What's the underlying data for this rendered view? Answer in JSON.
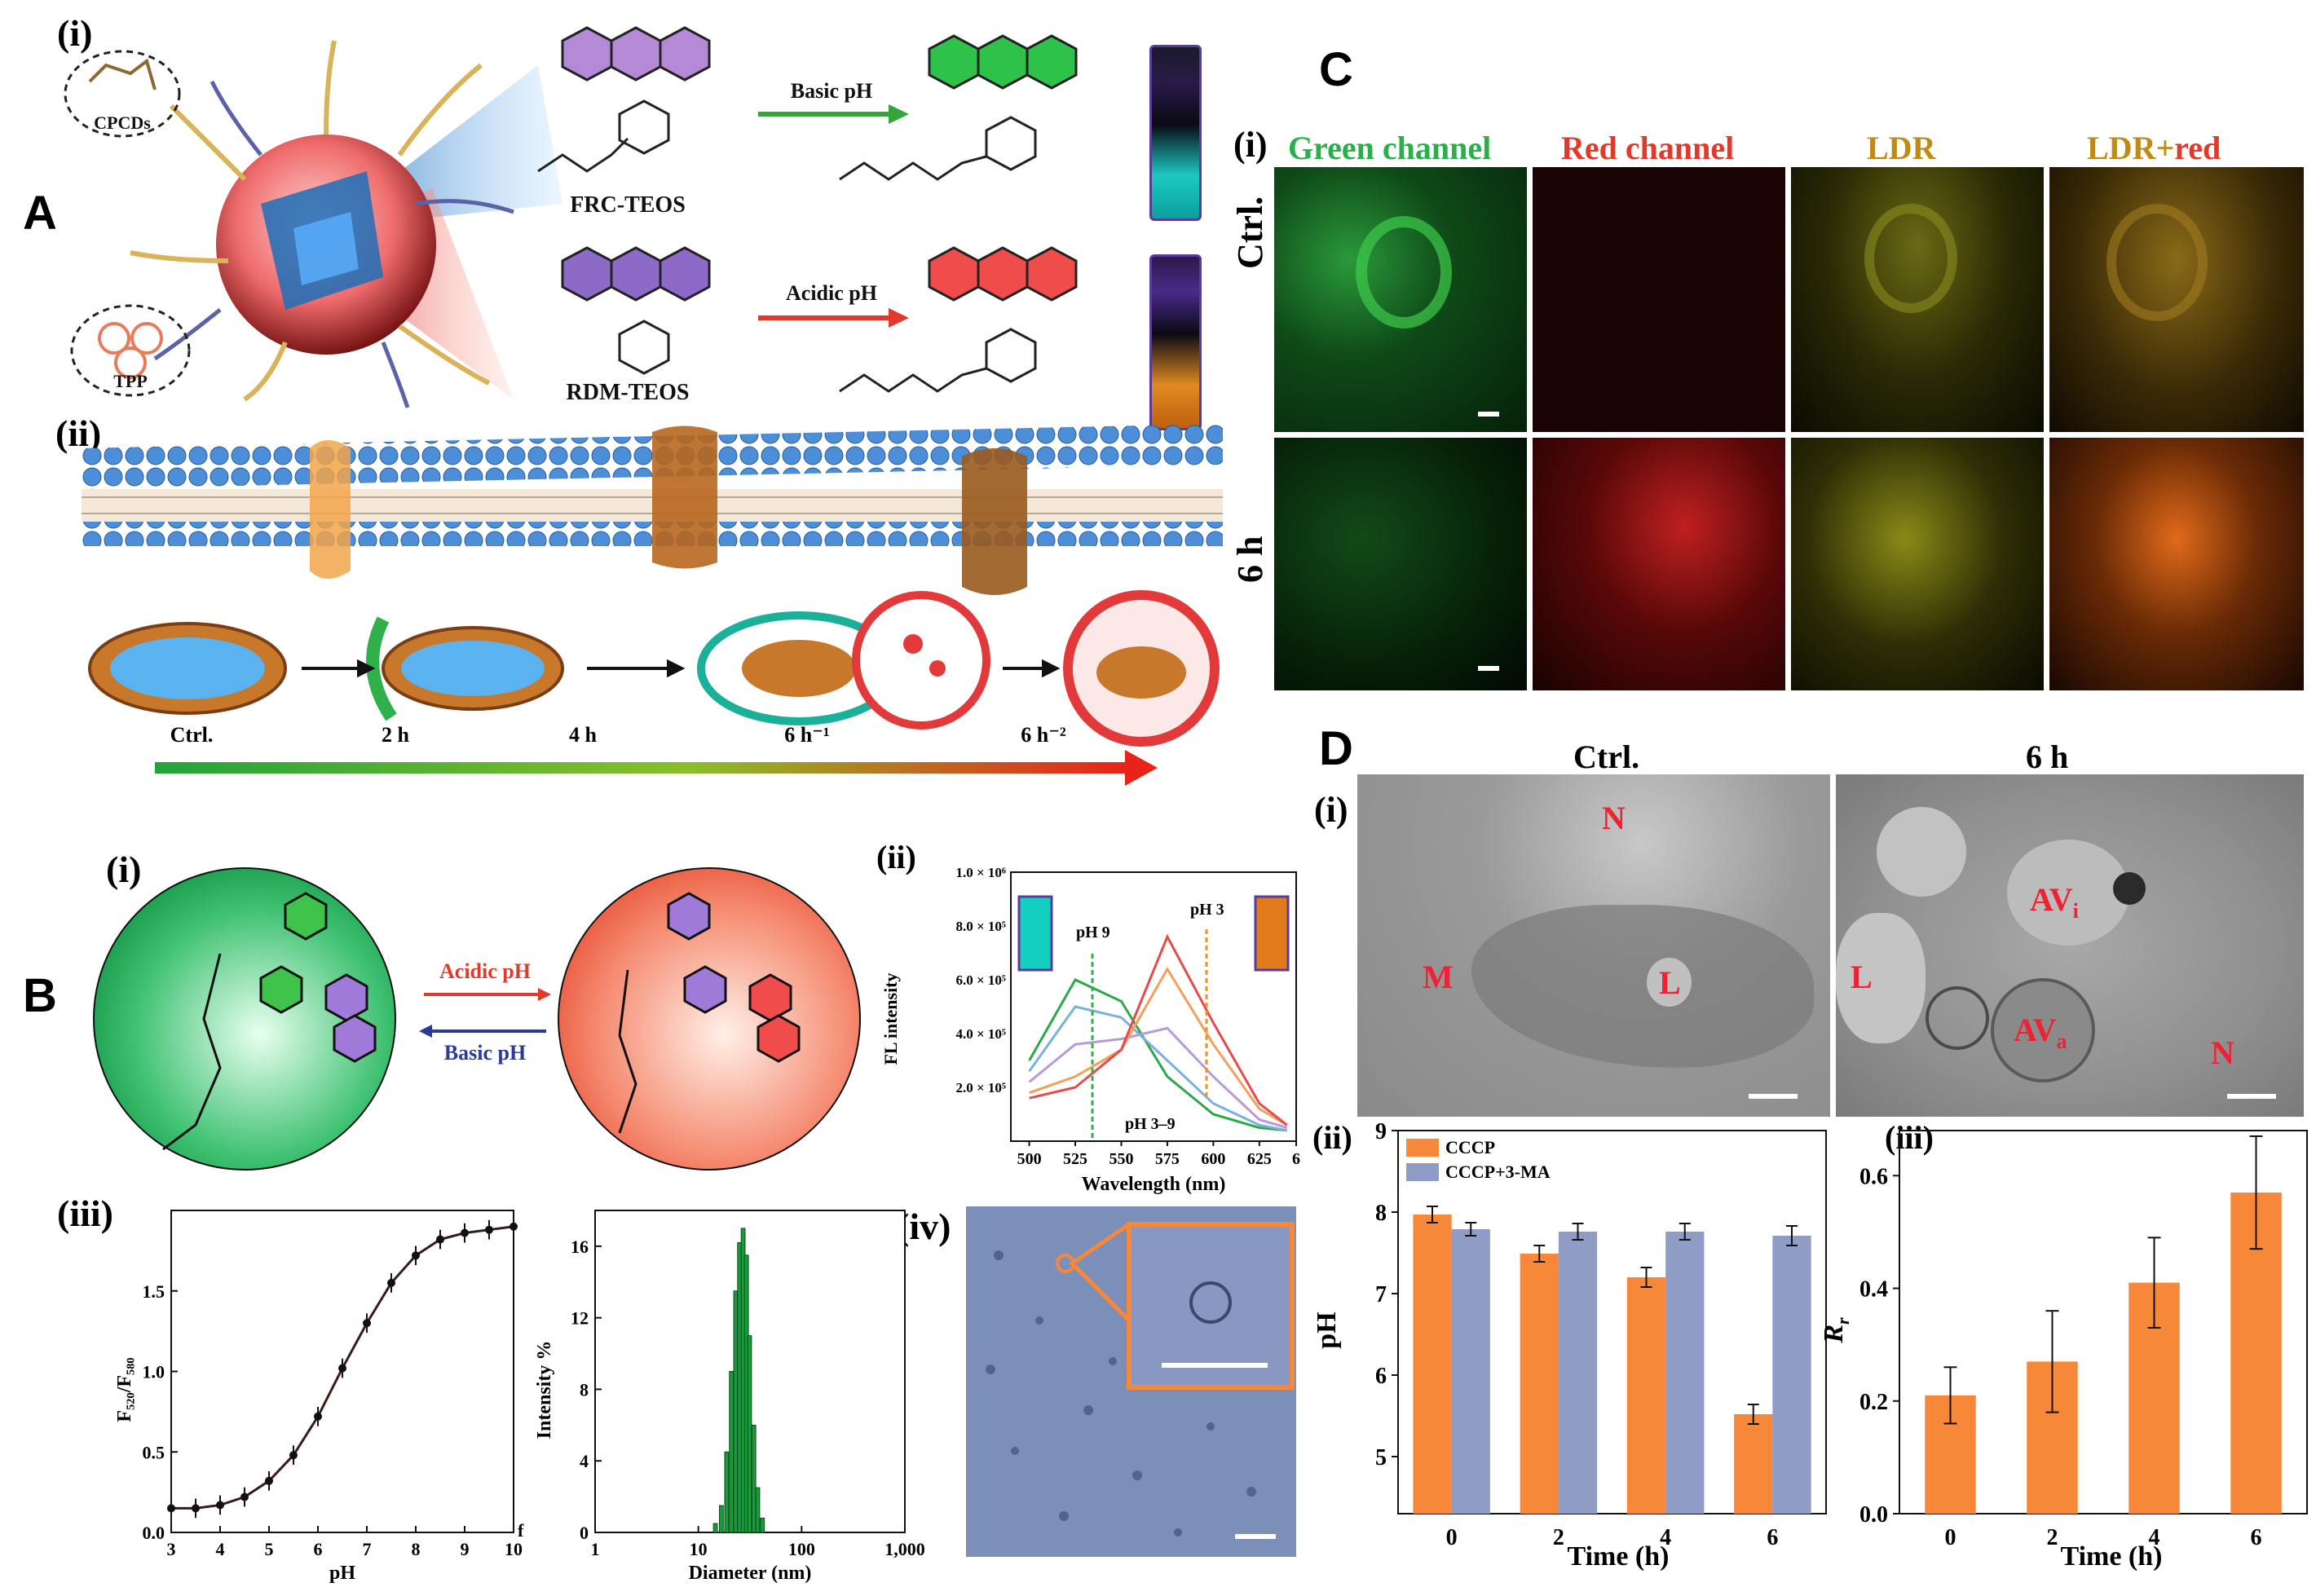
{
  "labels": {
    "A": "A",
    "B": "B",
    "C": "C",
    "D": "D",
    "A_i": "(i)",
    "A_ii": "(ii)",
    "B_i": "(i)",
    "B_ii": "(ii)",
    "B_iii": "(iii)",
    "B_iv": "(iv)",
    "C_i": "(i)",
    "D_i": "(i)",
    "D_ii": "(ii)",
    "D_iii": "(iii)"
  },
  "schemeA": {
    "cpcds": "CPCDs",
    "tpp": "TPP",
    "frc": "FRC-TEOS",
    "rdm": "RDM-TEOS",
    "basic": "Basic pH",
    "acidic": "Acidic pH",
    "steps": [
      "Ctrl.",
      "2 h",
      "4 h",
      "6 h⁻¹",
      "6 h⁻²"
    ]
  },
  "schemeB": {
    "acidic": "Acidic pH",
    "basic": "Basic pH"
  },
  "spectrum": {
    "ylabel": "FL intensity",
    "xlabel": "Wavelength (nm)",
    "ticks_x": [
      "500",
      "525",
      "550",
      "575",
      "600",
      "625",
      "6"
    ],
    "ticks_y": [
      "2.0 × 10⁵",
      "4.0 × 10⁵",
      "6.0 × 10⁵",
      "8.0 × 10⁵",
      "1.0 × 10⁶"
    ],
    "ph9": "pH 9",
    "ph3": "pH 3",
    "range": "pH 3–9"
  },
  "titration": {
    "ylabel": "F₅₂₀/F₅₈₀",
    "xlabel": "pH",
    "ticks_x": [
      "3",
      "4",
      "5",
      "6",
      "7",
      "8",
      "9",
      "10"
    ],
    "ticks_y": [
      "0.0",
      "0.5",
      "1.0",
      "1.5"
    ],
    "f": "f"
  },
  "dls": {
    "ylabel": "Intensity %",
    "xlabel": "Diameter (nm)",
    "ticks_x": [
      "1",
      "10",
      "100",
      "1,000"
    ],
    "ticks_y": [
      "0",
      "4",
      "8",
      "12",
      "16"
    ]
  },
  "confocal": {
    "cols": [
      "Green channel",
      "Red channel",
      "LDR",
      "LDR+",
      "red"
    ],
    "rows": [
      "Ctrl.",
      "6 h"
    ]
  },
  "tem": {
    "cols": [
      "Ctrl.",
      "6 h"
    ],
    "marks_ctrl": [
      "N",
      "M",
      "L"
    ],
    "marks_6h": [
      "AV",
      "i",
      "L",
      "AV",
      "a",
      "N"
    ]
  },
  "colors": {
    "orange": "#f7883a",
    "blue": "#8e9cc6",
    "green": "#1a9a3c",
    "red": "#e02a2a"
  },
  "chart_data": [
    {
      "type": "bar",
      "panel": "D(ii)",
      "categories": [
        "0",
        "2",
        "4",
        "6"
      ],
      "series": [
        {
          "name": "CCCP",
          "values": [
            7.97,
            7.49,
            7.2,
            5.52
          ],
          "errors": [
            0.1,
            0.1,
            0.12,
            0.12
          ]
        },
        {
          "name": "CCCP+3-MA",
          "values": [
            7.79,
            7.76,
            7.76,
            7.71
          ],
          "errors": [
            0.08,
            0.1,
            0.1,
            0.12
          ]
        }
      ],
      "xlabel": "Time (h)",
      "ylabel": "pH",
      "ylim": [
        4.3,
        9
      ],
      "yticks": [
        5,
        6,
        7,
        8,
        9
      ],
      "legend": "top-left"
    },
    {
      "type": "bar",
      "panel": "D(iii)",
      "categories": [
        "0",
        "2",
        "4",
        "6"
      ],
      "series": [
        {
          "values": [
            0.21,
            0.27,
            0.41,
            0.57
          ],
          "errors": [
            0.05,
            0.09,
            0.08,
            0.1
          ]
        }
      ],
      "xlabel": "Time (h)",
      "ylabel": "R",
      "ylabel_sub": "r",
      "ylim": [
        0,
        0.68
      ],
      "yticks": [
        0.0,
        0.2,
        0.4,
        0.6
      ]
    },
    {
      "type": "line",
      "panel": "B(ii)",
      "x": [
        500,
        525,
        550,
        575,
        600,
        625,
        640
      ],
      "series": [
        {
          "values": [
            3.0,
            6.0,
            5.2,
            2.4,
            1.0,
            0.5,
            0.4
          ]
        },
        {
          "values": [
            2.6,
            5.0,
            4.6,
            3.0,
            1.4,
            0.6,
            0.4
          ]
        },
        {
          "values": [
            2.2,
            3.6,
            3.8,
            4.2,
            2.4,
            0.8,
            0.5
          ]
        },
        {
          "values": [
            1.8,
            2.4,
            3.4,
            6.4,
            3.6,
            1.2,
            0.6
          ]
        },
        {
          "values": [
            1.6,
            2.0,
            3.4,
            7.6,
            4.4,
            1.4,
            0.6
          ]
        }
      ],
      "xlabel": "Wavelength (nm)",
      "ylabel": "FL intensity",
      "xlim": [
        490,
        645
      ],
      "ylim": [
        0,
        10
      ]
    },
    {
      "type": "scatter",
      "panel": "B(iii) left",
      "x": [
        3.0,
        3.5,
        4.0,
        4.5,
        5.0,
        5.5,
        6.0,
        6.5,
        7.0,
        7.5,
        8.0,
        8.5,
        9.0,
        9.5,
        10.0
      ],
      "values": [
        0.15,
        0.15,
        0.17,
        0.22,
        0.32,
        0.48,
        0.72,
        1.02,
        1.3,
        1.55,
        1.72,
        1.82,
        1.86,
        1.88,
        1.9
      ],
      "xlabel": "pH",
      "ylim": [
        0,
        2.0
      ],
      "xlim": [
        3,
        10
      ]
    },
    {
      "type": "bar",
      "panel": "B(iii) right",
      "categories": [
        "14",
        "16",
        "18",
        "20",
        "22",
        "24",
        "26",
        "28",
        "30",
        "33",
        "36",
        "40"
      ],
      "values": [
        0.5,
        1.5,
        4.5,
        9.0,
        13.5,
        16.2,
        17.0,
        15.5,
        11.0,
        6.0,
        2.5,
        0.8
      ],
      "xlabel": "Diameter (nm)",
      "ylabel": "Intensity %",
      "ylim": [
        0,
        18
      ]
    }
  ]
}
